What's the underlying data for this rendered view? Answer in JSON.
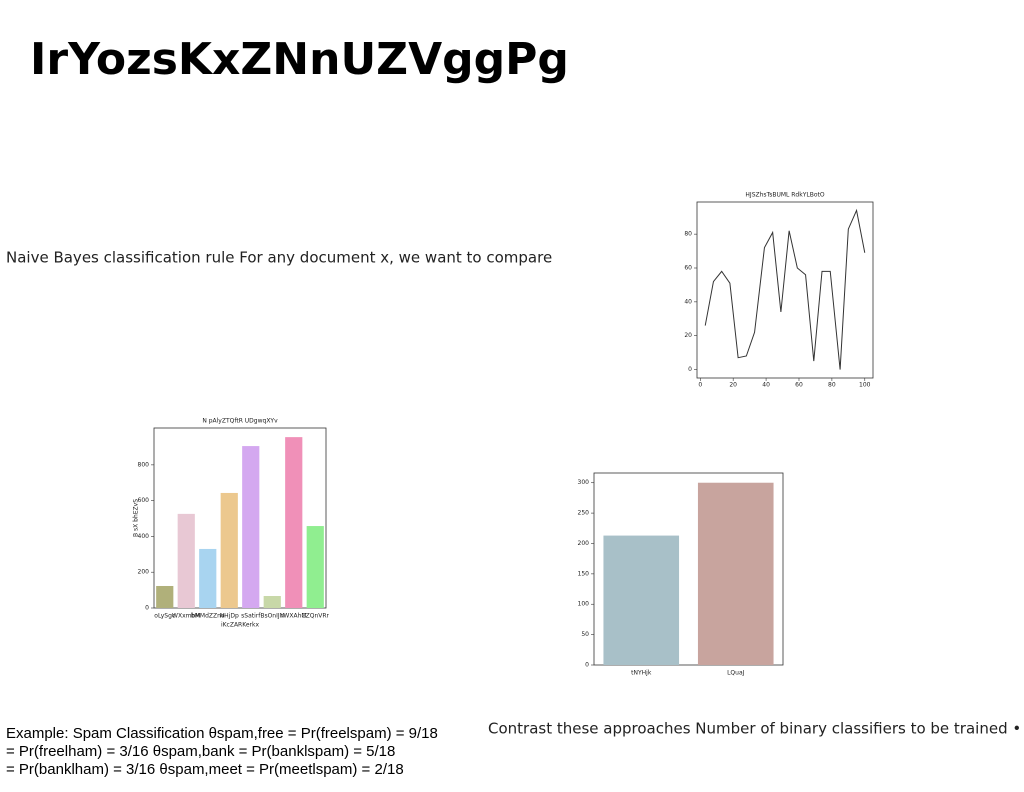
{
  "title": "IrYozsKxZNnUZVggPg",
  "paragraph": "Naive Bayes classification rule For any document x, we want to compare",
  "example_lines": [
    "Example: Spam Classification θspam,free = Pr(freelspam) = 9/18",
    "= Pr(freelham) = 3/16 θspam,bank = Pr(banklspam) = 5/18",
    "= Pr(banklham) = 3/16 θspam,meet = Pr(meetlspam) = 2/18"
  ],
  "contrast": "Contrast these approaches Number of binary classifiers to be trained •",
  "chart_data": [
    {
      "type": "line",
      "title": "HJSZhsTsBUML  RdkYLBotO",
      "color": "#333333",
      "x": [
        3,
        8,
        13,
        18,
        23,
        28,
        33,
        39,
        44,
        49,
        54,
        59,
        64,
        69,
        74,
        79,
        85,
        90,
        95,
        100
      ],
      "values": [
        26,
        52,
        58,
        51,
        7,
        8,
        22,
        72,
        81,
        34,
        82,
        60,
        56,
        5,
        58,
        58,
        0,
        83,
        94,
        69
      ],
      "xlim": [
        -2,
        105
      ],
      "xticks": [
        0,
        20,
        40,
        60,
        80,
        100
      ],
      "ylim": [
        -5,
        99
      ],
      "yticks": [
        0,
        20,
        40,
        60,
        80
      ]
    },
    {
      "type": "bar",
      "title": "N pAlyZTQftR UDgwqXYv",
      "xlabel": "iKcZARKerkx",
      "ylabel": "B sX bhEZvS",
      "categories": [
        "oLySgc",
        "WXxmbM",
        "bMMdZZno",
        "NHjDp",
        "sSatirf",
        "BsOnIJN",
        "rWXAhM",
        "CZQnVRr"
      ],
      "values": [
        123,
        526,
        330,
        643,
        905,
        67,
        955,
        458
      ],
      "colors": [
        "#b0b07a",
        "#e8c8d4",
        "#a8d4f0",
        "#ecc88e",
        "#d4a8f0",
        "#c8d8a8",
        "#f090b8",
        "#90ee90"
      ],
      "ylim": [
        0,
        1006
      ],
      "yticks": [
        0,
        200,
        400,
        600,
        800
      ]
    },
    {
      "type": "bar",
      "categories": [
        "tNYHjk",
        "LQuaJ"
      ],
      "values": [
        213,
        300
      ],
      "colors": [
        "#a8c0c8",
        "#c8a49e"
      ],
      "ylim": [
        0,
        316
      ],
      "yticks": [
        0,
        50,
        100,
        150,
        200,
        250,
        300
      ]
    }
  ]
}
